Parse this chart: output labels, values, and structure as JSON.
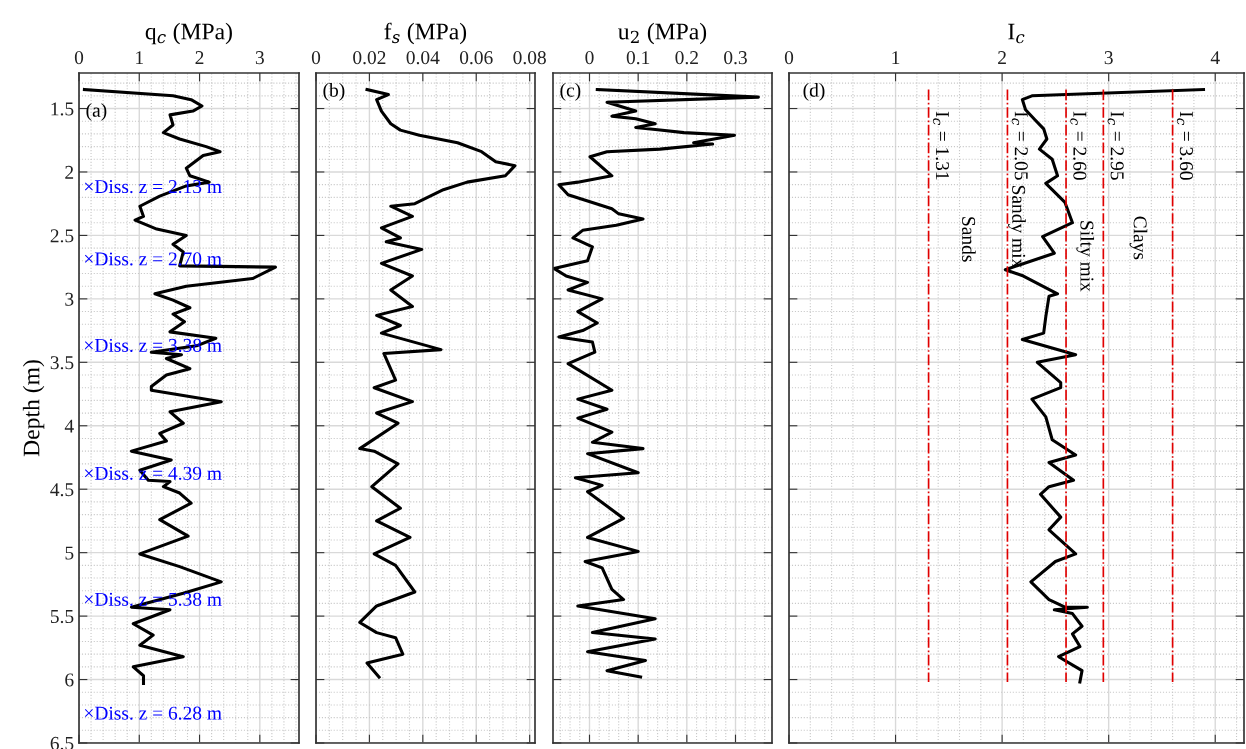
{
  "chart_data": [
    {
      "type": "line",
      "orientation": "horizontal",
      "xlabel": "q$_{c}$ (MPa)",
      "ylabel": "Depth (m)",
      "xlim": [
        0,
        3.65
      ],
      "xticks": [
        0,
        1,
        2,
        3
      ],
      "ylim": [
        6.5,
        1.22
      ],
      "yticks": [
        1.5,
        2,
        2.5,
        3,
        3.5,
        4,
        4.5,
        5,
        5.5,
        6,
        6.5
      ],
      "grid": true,
      "series": [
        {
          "color": "#000000",
          "x": [
            1.35,
            1.4,
            1.43,
            1.48,
            1.52,
            1.55,
            1.63,
            1.69,
            1.74,
            1.8,
            1.84,
            1.87,
            1.97,
            2.03,
            2.08,
            2.11,
            2.19,
            2.27,
            2.35,
            2.38,
            2.45,
            2.5,
            2.57,
            2.63,
            2.74,
            2.75,
            2.84,
            2.9,
            2.96,
            3.01,
            3.07,
            3.12,
            3.18,
            3.26,
            3.31,
            3.37,
            3.42,
            3.44,
            3.47,
            3.55,
            3.6,
            3.69,
            3.72,
            3.81,
            3.89,
            3.98,
            4.06,
            4.12,
            4.2,
            4.27,
            4.35,
            4.43,
            4.44,
            4.48,
            4.53,
            4.61,
            4.74,
            4.87,
            5.01,
            5.11,
            5.23,
            5.32,
            5.43,
            5.45,
            5.56,
            5.65,
            5.73,
            5.82,
            5.9,
            5.97,
            6.03
          ],
          "values": [
            0.09,
            1.56,
            1.86,
            2.04,
            1.89,
            1.51,
            1.56,
            1.4,
            1.67,
            2.11,
            2.34,
            2.06,
            1.78,
            1.84,
            2.16,
            1.78,
            1.34,
            1.01,
            1.07,
            0.93,
            1.29,
            1.78,
            1.56,
            1.73,
            1.67,
            3.26,
            2.88,
            1.78,
            1.26,
            1.56,
            1.84,
            1.56,
            1.75,
            1.51,
            2.27,
            1.95,
            1.2,
            1.7,
            1.45,
            1.84,
            1.45,
            1.2,
            1.2,
            2.36,
            1.51,
            1.73,
            1.34,
            1.45,
            0.87,
            1.53,
            1.01,
            1.15,
            1.51,
            1.4,
            1.67,
            1.86,
            1.34,
            1.81,
            1.01,
            1.67,
            2.36,
            1.73,
            0.87,
            1.51,
            0.9,
            1.23,
            1.01,
            1.73,
            0.9,
            1.07,
            1.07
          ]
        }
      ],
      "annotations": [
        "(a)",
        "×Diss. z = 2.13 m",
        "×Diss. z = 2.70 m",
        "×Diss. z = 3.38 m",
        "×Diss. z = 4.39 m",
        "×Diss. z = 5.38 m",
        "×Diss. z = 6.28 m"
      ]
    },
    {
      "type": "line",
      "orientation": "horizontal",
      "xlabel": "f$_{s}$ (MPa)",
      "xlim": [
        0,
        0.082
      ],
      "xticks": [
        0,
        0.02,
        0.04,
        0.06,
        0.08
      ],
      "ylim": [
        6.5,
        1.22
      ],
      "yticks": [
        1.5,
        2,
        2.5,
        3,
        3.5,
        4,
        4.5,
        5,
        5.5,
        6,
        6.5
      ],
      "grid": true,
      "tick_labels": "x",
      "series": [
        {
          "color": "#000000",
          "x": [
            1.35,
            1.39,
            1.43,
            1.52,
            1.62,
            1.67,
            1.71,
            1.77,
            1.84,
            1.92,
            1.95,
            2.03,
            2.08,
            2.14,
            2.25,
            2.27,
            2.35,
            2.44,
            2.52,
            2.55,
            2.61,
            2.72,
            2.82,
            2.93,
            3.06,
            3.13,
            3.21,
            3.27,
            3.4,
            3.43,
            3.64,
            3.7,
            3.81,
            3.9,
            3.98,
            4.18,
            4.2,
            4.3,
            4.48,
            4.65,
            4.75,
            4.88,
            5.01,
            5.1,
            5.31,
            5.42,
            5.55,
            5.63,
            5.67,
            5.8,
            5.87,
            5.98
          ],
          "values": [
            0.0191,
            0.0271,
            0.0227,
            0.0245,
            0.028,
            0.0316,
            0.0387,
            0.053,
            0.062,
            0.0673,
            0.0745,
            0.0709,
            0.0566,
            0.0477,
            0.037,
            0.028,
            0.0361,
            0.0245,
            0.0316,
            0.0263,
            0.0396,
            0.0245,
            0.0361,
            0.028,
            0.0361,
            0.0227,
            0.0316,
            0.0245,
            0.0468,
            0.0254,
            0.0298,
            0.0218,
            0.0361,
            0.0227,
            0.0307,
            0.0164,
            0.0218,
            0.0307,
            0.0209,
            0.0316,
            0.0227,
            0.0352,
            0.0218,
            0.0298,
            0.037,
            0.0227,
            0.0164,
            0.0227,
            0.0298,
            0.0325,
            0.0191,
            0.0236
          ]
        }
      ],
      "annotations": [
        "(b)"
      ]
    },
    {
      "type": "line",
      "orientation": "horizontal",
      "xlabel": "u$_{2}$ (MPa)",
      "xlim": [
        -0.075,
        0.375
      ],
      "xticks": [
        0,
        0.1,
        0.2,
        0.3
      ],
      "ylim": [
        6.5,
        1.22
      ],
      "yticks": [
        1.5,
        2,
        2.5,
        3,
        3.5,
        4,
        4.5,
        5,
        5.5,
        6,
        6.5
      ],
      "grid": true,
      "tick_labels": "x",
      "series": [
        {
          "color": "#000000",
          "x": [
            1.35,
            1.41,
            1.45,
            1.52,
            1.56,
            1.58,
            1.62,
            1.65,
            1.67,
            1.69,
            1.71,
            1.77,
            1.78,
            1.82,
            1.84,
            1.88,
            2.03,
            2.08,
            2.1,
            2.18,
            2.29,
            2.33,
            2.37,
            2.42,
            2.46,
            2.52,
            2.59,
            2.7,
            2.76,
            2.82,
            2.87,
            2.93,
            3.0,
            3.1,
            3.19,
            3.25,
            3.3,
            3.34,
            3.42,
            3.51,
            3.72,
            3.79,
            3.87,
            3.94,
            4.05,
            4.13,
            4.18,
            4.22,
            4.37,
            4.41,
            4.47,
            4.52,
            4.73,
            4.88,
            4.99,
            5.07,
            5.12,
            5.29,
            5.37,
            5.42,
            5.52,
            5.63,
            5.68,
            5.78,
            5.85,
            5.93,
            5.98
          ],
          "values": [
            0.016,
            0.347,
            0.036,
            0.095,
            0.046,
            0.095,
            0.135,
            0.095,
            0.145,
            0.194,
            0.298,
            0.214,
            0.253,
            0.145,
            0.036,
            0.001,
            0.046,
            -0.024,
            -0.063,
            -0.044,
            0.046,
            0.06,
            0.11,
            0.055,
            -0.014,
            -0.034,
            0.006,
            -0.004,
            -0.073,
            -0.048,
            -0.004,
            -0.044,
            0.026,
            -0.024,
            0.016,
            -0.014,
            -0.063,
            0.006,
            0.011,
            -0.044,
            0.046,
            -0.024,
            0.036,
            -0.024,
            0.046,
            0.006,
            0.11,
            -0.004,
            0.1,
            -0.029,
            0.026,
            -0.004,
            0.07,
            -0.004,
            0.1,
            -0.009,
            0.026,
            0.046,
            0.07,
            -0.024,
            0.135,
            0.006,
            0.135,
            -0.004,
            0.115,
            0.036,
            0.105
          ]
        }
      ],
      "annotations": [
        "(c)"
      ]
    },
    {
      "type": "line",
      "orientation": "horizontal",
      "xlabel": "I$_{c}$",
      "xlim": [
        0,
        4.27
      ],
      "xticks": [
        0,
        1,
        2,
        3,
        4
      ],
      "ylim": [
        6.5,
        1.22
      ],
      "yticks": [
        1.5,
        2,
        2.5,
        3,
        3.5,
        4,
        4.5,
        5,
        5.5,
        6,
        6.5
      ],
      "grid": true,
      "tick_labels": "x",
      "series": [
        {
          "color": "#000000",
          "x": [
            1.35,
            1.4,
            1.43,
            1.51,
            1.59,
            1.66,
            1.74,
            1.82,
            1.9,
            2.03,
            2.09,
            2.24,
            2.4,
            2.51,
            2.64,
            2.77,
            2.82,
            2.96,
            2.98,
            3.14,
            3.27,
            3.32,
            3.44,
            3.5,
            3.66,
            3.7,
            3.79,
            3.93,
            4.11,
            4.23,
            4.29,
            4.43,
            4.48,
            4.54,
            4.72,
            4.82,
            5.01,
            5.07,
            5.23,
            5.37,
            5.43,
            5.43,
            5.45,
            5.48,
            5.58,
            5.64,
            5.74,
            5.82,
            5.93,
            6.02
          ],
          "values": [
            3.89,
            2.28,
            2.19,
            2.22,
            2.31,
            2.39,
            2.42,
            2.35,
            2.47,
            2.52,
            2.41,
            2.59,
            2.66,
            2.38,
            2.49,
            2.03,
            2.2,
            2.52,
            2.44,
            2.41,
            2.39,
            2.19,
            2.69,
            2.33,
            2.55,
            2.55,
            2.28,
            2.41,
            2.47,
            2.69,
            2.44,
            2.67,
            2.44,
            2.36,
            2.55,
            2.44,
            2.69,
            2.5,
            2.27,
            2.44,
            2.59,
            2.8,
            2.49,
            2.66,
            2.75,
            2.66,
            2.73,
            2.53,
            2.75,
            2.73
          ]
        }
      ],
      "ref_lines": [
        {
          "axis": "x",
          "value": 1.31,
          "label": "I$_{c}$ = 1.31",
          "color": "#e00000",
          "line_style": "dashdot"
        },
        {
          "axis": "x",
          "value": 2.05,
          "label": "I$_{c}$ = 2.05",
          "color": "#e00000",
          "line_style": "dashdot"
        },
        {
          "axis": "x",
          "value": 2.6,
          "label": "I$_{c}$ = 2.60",
          "color": "#e00000",
          "line_style": "dashdot"
        },
        {
          "axis": "x",
          "value": 2.95,
          "label": "I$_{c}$ = 2.95",
          "color": "#e00000",
          "line_style": "dashdot"
        },
        {
          "axis": "x",
          "value": 3.6,
          "label": "I$_{c}$ = 3.60",
          "color": "#e00000",
          "line_style": "dashdot"
        }
      ],
      "annotations": [
        "(d)",
        "Sands",
        "Sandy mix",
        "Silty mix",
        "Clays"
      ]
    }
  ]
}
